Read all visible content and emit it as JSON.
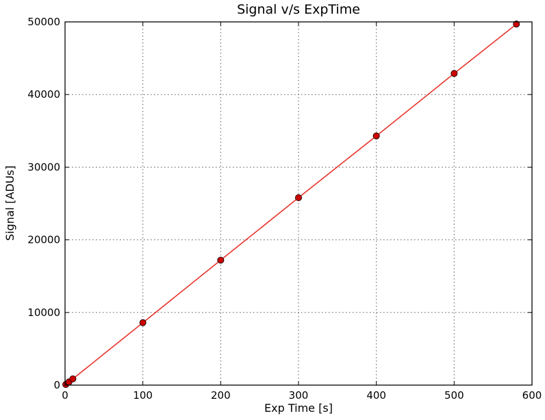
{
  "chart_data": {
    "type": "line",
    "title": "Signal v/s ExpTime",
    "xlabel": "Exp Time [s]",
    "ylabel": "Signal [ADUs]",
    "xlim": [
      0,
      600
    ],
    "ylim": [
      0,
      50000
    ],
    "xticks": [
      0,
      100,
      200,
      300,
      400,
      500,
      600
    ],
    "yticks": [
      0,
      10000,
      20000,
      30000,
      40000,
      50000
    ],
    "grid": true,
    "grid_style": "dotted",
    "legend": "none",
    "series": [
      {
        "x": [
          1,
          5,
          10,
          100,
          200,
          300,
          400,
          500,
          580
        ],
        "y": [
          86,
          430,
          860,
          8600,
          17200,
          25800,
          34300,
          42900,
          49700
        ],
        "marker": "circle",
        "line_color": "#e8332a",
        "marker_color": "#cc0000"
      }
    ]
  }
}
